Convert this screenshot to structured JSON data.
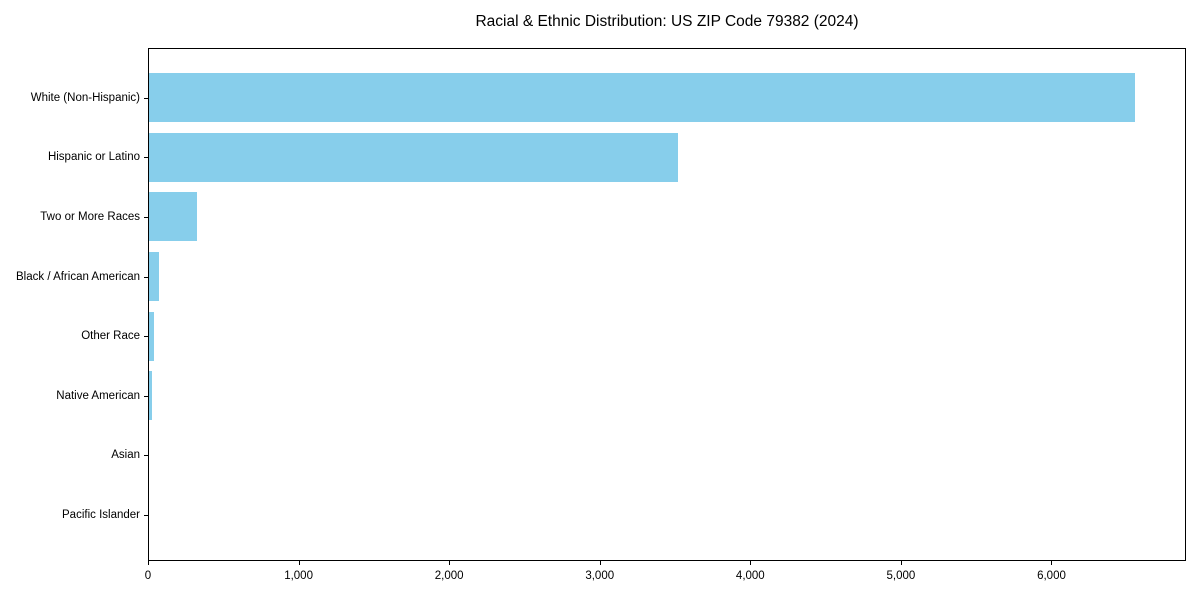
{
  "chart_data": {
    "type": "bar",
    "orientation": "horizontal",
    "title": "Racial & Ethnic Distribution: US ZIP Code 79382 (2024)",
    "categories": [
      "White (Non-Hispanic)",
      "Hispanic or Latino",
      "Two or More Races",
      "Black / African American",
      "Other Race",
      "Native American",
      "Asian",
      "Pacific Islander"
    ],
    "values": [
      6550,
      3510,
      320,
      65,
      30,
      20,
      0,
      0
    ],
    "xlabel": "",
    "ylabel": "",
    "xlim": [
      0,
      6880
    ],
    "xticks": [
      0,
      1000,
      2000,
      3000,
      4000,
      5000,
      6000
    ],
    "xtick_labels": [
      "0",
      "1,000",
      "2,000",
      "3,000",
      "4,000",
      "5,000",
      "6,000"
    ],
    "bar_color": "#87CEEB",
    "axis_color": "#000000",
    "grid": false,
    "legend": null
  }
}
